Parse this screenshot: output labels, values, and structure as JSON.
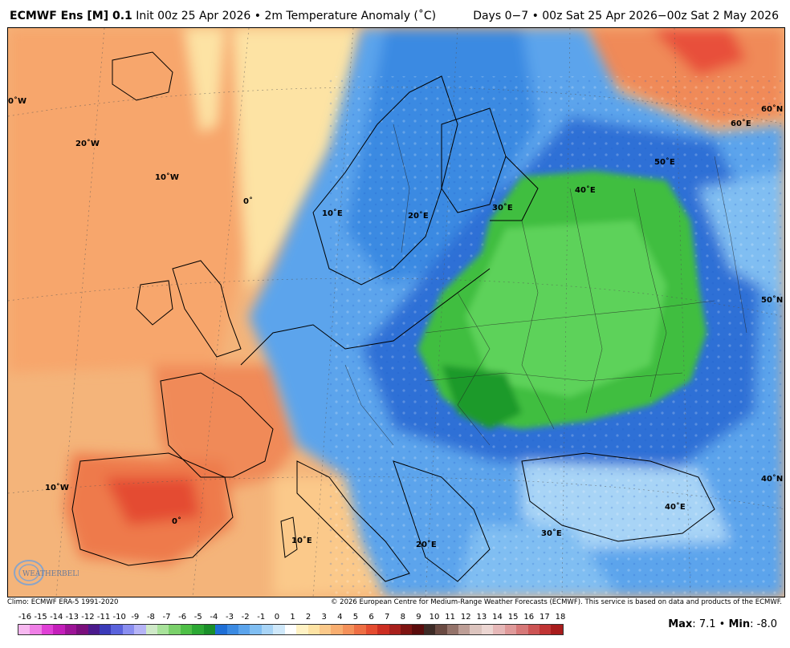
{
  "header": {
    "model": "ECMWF Ens [M] 0.1",
    "init": "Init 00z 25 Apr 2026",
    "separator": "•",
    "variable": "2m Temperature Anomaly (˚C)",
    "period": "Days 0−7 • 00z Sat 25 Apr 2026−00z Sat 2 May 2026"
  },
  "map": {
    "grid_labels": [
      "0˚W",
      "20˚W",
      "10˚W",
      "0˚",
      "10˚E",
      "20˚E",
      "30˚E",
      "40˚E",
      "50˚E",
      "60˚E",
      "60˚N",
      "50˚N",
      "40˚N",
      "10˚W",
      "0˚",
      "10˚E",
      "20˚E",
      "30˚E",
      "40˚E"
    ],
    "logo_text": "WEATHERBELL",
    "colors": {
      "warm": "#f7a066",
      "hot": "#e8503a",
      "mild": "#fbe1a8",
      "cool": "#7fb8ee",
      "cold": "#2f6fd6",
      "green": "#3fbe3f",
      "deepgreen": "#1e9a2a",
      "sea_warm": "#f4b47a"
    }
  },
  "credits": {
    "left": "Climo: ECMWF ERA-5 1991-2020",
    "right": "© 2026 European Centre for Medium-Range Weather Forecasts (ECMWF). This service is based on data and products of the ECMWF."
  },
  "colorbar": {
    "ticks": [
      "-16",
      "-15",
      "-14",
      "-13",
      "-12",
      "-11",
      "-10",
      "-9",
      "-8",
      "-7",
      "-6",
      "-5",
      "-4",
      "-3",
      "-2",
      "-1",
      "0",
      "1",
      "2",
      "3",
      "4",
      "5",
      "6",
      "7",
      "8",
      "9",
      "10",
      "11",
      "12",
      "13",
      "14",
      "15",
      "16",
      "17",
      "18"
    ],
    "colors": [
      "#f7b8f0",
      "#ef7fe6",
      "#e040d6",
      "#c41fba",
      "#9c1496",
      "#7a0f7c",
      "#4b1a8c",
      "#3a3ab8",
      "#5a62dc",
      "#8a8ef0",
      "#b6b4f6",
      "#cfe9c8",
      "#a8e29a",
      "#7ad06a",
      "#4ebf46",
      "#2ca834",
      "#1a8f2a",
      "#1f6fd6",
      "#3b8ae2",
      "#5ba4ec",
      "#80bef2",
      "#a8d4f6",
      "#cfe8fa",
      "#ffffff",
      "#fff2c4",
      "#fde3a4",
      "#fbc98a",
      "#f8ae70",
      "#f4915a",
      "#ee6f44",
      "#e44c30",
      "#cc2e22",
      "#a8201c",
      "#7e1412",
      "#5a0c0c",
      "#3d2b26",
      "#6a4a42",
      "#94736a",
      "#bd9e96",
      "#dcc4be",
      "#ecd6d2",
      "#e6b8b8",
      "#df9a9a",
      "#d67878",
      "#cc5454",
      "#c03434",
      "#a81c1c"
    ],
    "max_label": "Max",
    "max": "7.1",
    "min_label": "Min",
    "min": "-8.0"
  }
}
